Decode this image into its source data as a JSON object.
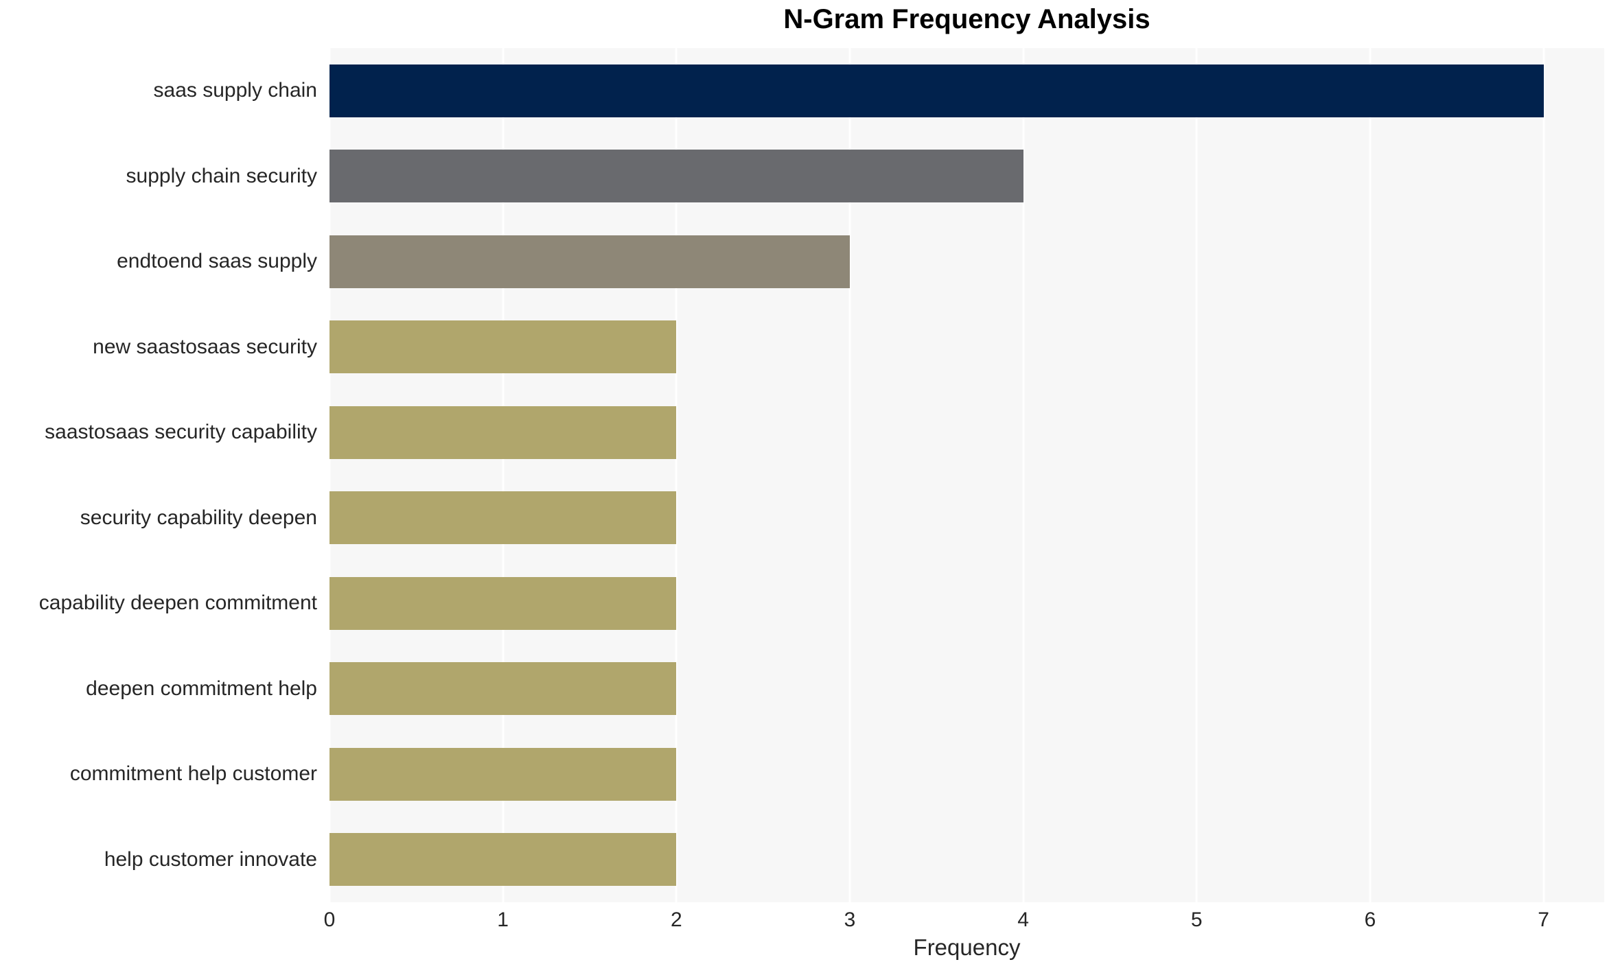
{
  "chart": {
    "title": "N-Gram Frequency Analysis",
    "xlabel": "Frequency"
  },
  "chart_data": {
    "type": "bar",
    "orientation": "horizontal",
    "title": "N-Gram Frequency Analysis",
    "xlabel": "Frequency",
    "ylabel": "",
    "categories": [
      "saas supply chain",
      "supply chain security",
      "endtoend saas supply",
      "new saastosaas security",
      "saastosaas security capability",
      "security capability deepen",
      "capability deepen commitment",
      "deepen commitment help",
      "commitment help customer",
      "help customer innovate"
    ],
    "values": [
      7,
      4,
      3,
      2,
      2,
      2,
      2,
      2,
      2,
      2
    ],
    "bar_colors": [
      "#01224d",
      "#696a6e",
      "#8e8777",
      "#b0a66c",
      "#b0a66c",
      "#b0a66c",
      "#b0a66c",
      "#b0a66c",
      "#b0a66c",
      "#b0a66c"
    ],
    "xticks": [
      0,
      1,
      2,
      3,
      4,
      5,
      6,
      7
    ],
    "xlim": [
      0,
      7.35
    ],
    "grid": true,
    "legend": false,
    "colors": {
      "plot_background": "#f7f7f7",
      "gridline": "#ffffff",
      "tick_text": "#262626",
      "title_text": "#000000"
    }
  }
}
